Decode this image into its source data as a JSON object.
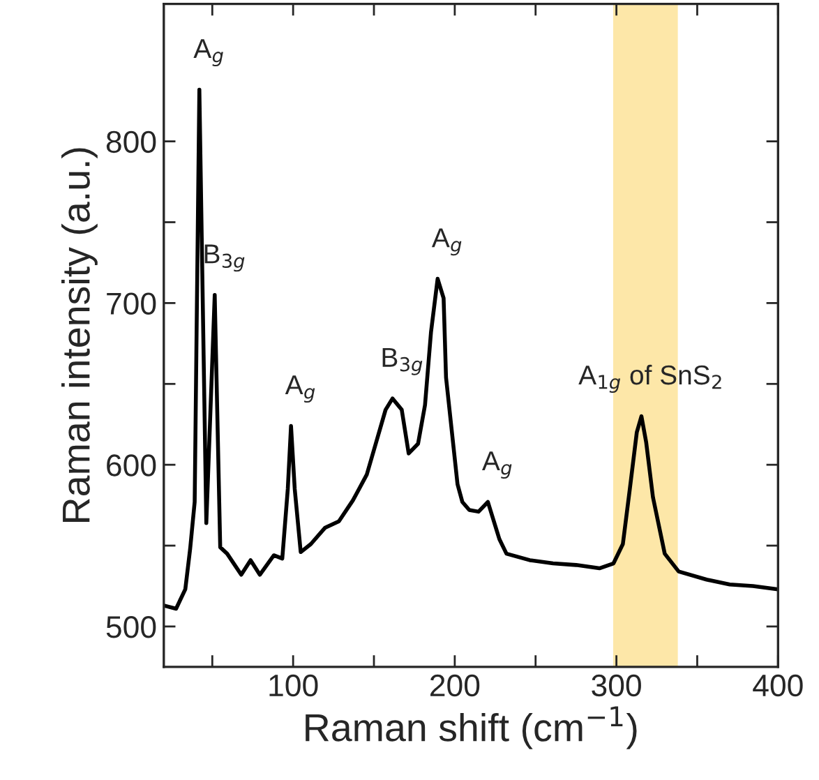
{
  "chart_data": {
    "type": "line",
    "xlabel": "Raman shift (cm$^{−1}$)",
    "ylabel": "Raman intensity (a.u.)",
    "series": [
      {
        "color": "#000000",
        "x": [
          20,
          27.6,
          33.3,
          36.3,
          39.1,
          42,
          46.3,
          51.5,
          54.9,
          59.2,
          67.9,
          73.7,
          79.4,
          88.1,
          93.3,
          96.7,
          98.7,
          101,
          104.7,
          111,
          119.7,
          128.3,
          137,
          145.6,
          151.4,
          157.2,
          161.5,
          167.2,
          171.5,
          177.3,
          181.6,
          185.3,
          189.4,
          193.1,
          194.6,
          201.7,
          204.7,
          209,
          214.7,
          220.5,
          227.6,
          232,
          246.4,
          260.8,
          275.1,
          289.5,
          298.2,
          304,
          308.3,
          312.6,
          315.5,
          318.4,
          322.6,
          329.9,
          338.5,
          355.8,
          370.1,
          384.5,
          400
        ],
        "values": [
          513,
          511,
          523,
          548,
          577,
          832,
          564,
          705,
          549,
          545,
          532,
          541,
          532,
          544,
          542,
          585,
          624,
          585,
          546,
          551,
          561,
          565,
          578,
          594,
          614,
          634,
          641,
          634,
          607,
          613,
          637,
          682,
          715,
          703,
          654,
          588,
          577,
          572,
          571,
          577,
          554,
          545,
          541,
          539,
          538,
          536,
          539,
          551,
          585,
          620,
          630,
          614,
          580,
          545,
          534,
          529,
          526,
          525,
          523
        ]
      }
    ],
    "xlim": [
      20,
      400
    ],
    "ylim": [
      475,
      885
    ],
    "xticks": [
      {
        "value": 50,
        "label": null
      },
      100,
      {
        "value": 150,
        "label": null
      },
      200,
      {
        "value": 250,
        "label": null
      },
      300,
      {
        "value": 350,
        "label": null
      },
      400
    ],
    "yticks": [
      500,
      {
        "value": 550,
        "label": null
      },
      600,
      {
        "value": 650,
        "label": null
      },
      700,
      {
        "value": 750,
        "label": null
      },
      800
    ],
    "bands": [
      {
        "axis": "x",
        "from": 298,
        "to": 338,
        "color": "#fde7a8"
      }
    ],
    "annotations": [
      {
        "text": "A$_{g}$",
        "x": 42,
        "y": 832
      },
      {
        "text": "B$_{3g}$",
        "x": 51.5,
        "y": 705
      },
      {
        "text": "A$_{g}$",
        "x": 98.7,
        "y": 624
      },
      {
        "text": "B$_{3g}$",
        "x": 161.5,
        "y": 641
      },
      {
        "text": "A$_{g}$",
        "x": 189.4,
        "y": 715
      },
      {
        "text": "A$_{g}$",
        "x": 220.5,
        "y": 577
      },
      {
        "text": "A$_{1g}$ of SnS$_{2}$",
        "x": 315.5,
        "y": 630
      }
    ],
    "grid": false,
    "legend": false,
    "line_style": "solid",
    "marker": "none"
  }
}
